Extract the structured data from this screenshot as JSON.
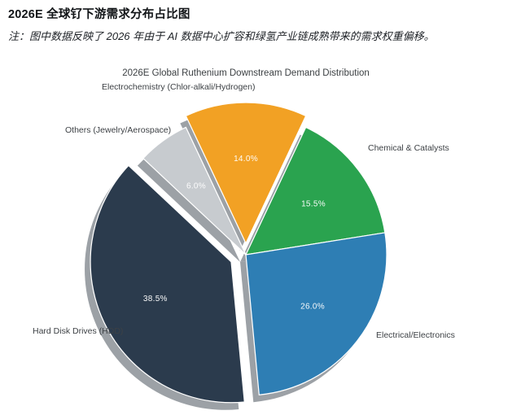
{
  "header": {
    "title": "2026E 全球钌下游需求分布占比图",
    "note": "注：图中数据反映了 2026 年由于 AI 数据中心扩容和绿氢产业链成熟带来的需求权重偏移。"
  },
  "chart_data": {
    "type": "pie",
    "title": "2026E Global Ruthenium Downstream Demand Distribution",
    "slices": [
      {
        "label": "Electrochemistry (Chlor-alkali/Hydrogen)",
        "value": 14.0,
        "pct_label": "14.0%",
        "color": "#F2A124",
        "explode": 14
      },
      {
        "label": "Chemical & Catalysts",
        "value": 15.5,
        "pct_label": "15.5%",
        "color": "#2AA34F",
        "explode": 0
      },
      {
        "label": "Electrical/Electronics",
        "value": 26.0,
        "pct_label": "26.0%",
        "color": "#2E7EB4",
        "explode": 0
      },
      {
        "label": "Hard Disk Drives (HDD)",
        "value": 38.5,
        "pct_label": "38.5%",
        "color": "#2B3B4D",
        "explode": 20
      },
      {
        "label": "Others (Jewelry/Aerospace)",
        "value": 6.0,
        "pct_label": "6.0%",
        "color": "#C7CBCF",
        "explode": 0
      }
    ],
    "layout": {
      "center": [
        302,
        313
      ],
      "radius": 173,
      "start_angle_deg": -25.2,
      "clockwise": true,
      "label_radius_ratio": 0.6,
      "shadow_color": "#9CA1A6",
      "shadow_offset": [
        -7,
        9
      ],
      "percent_color": "#ffffff",
      "legend": "none",
      "grid": false
    }
  }
}
